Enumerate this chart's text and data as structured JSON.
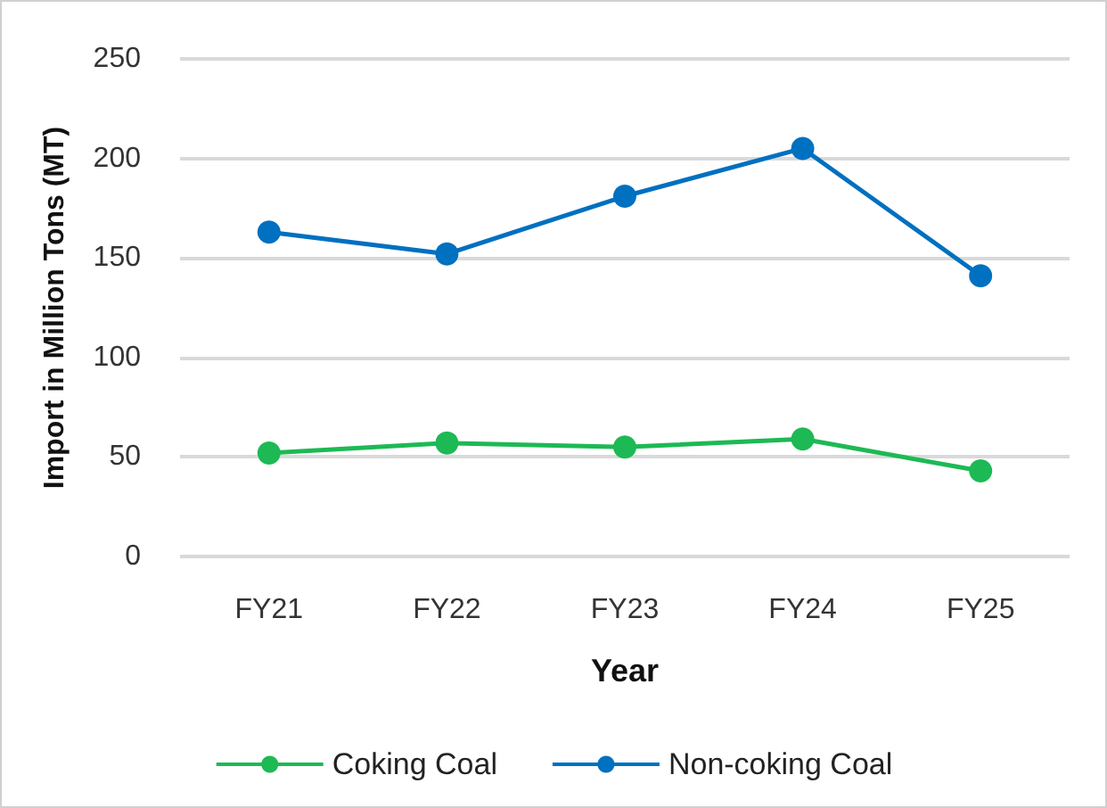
{
  "chart_data": {
    "type": "line",
    "xlabel": "Year",
    "ylabel": "Import in Million Tons (MT)",
    "categories": [
      "FY21",
      "FY22",
      "FY23",
      "FY24",
      "FY25"
    ],
    "series": [
      {
        "name": "Coking Coal",
        "color": "#1db954",
        "values": [
          52,
          57,
          55,
          59,
          43
        ]
      },
      {
        "name": "Non-coking Coal",
        "color": "#0070c0",
        "values": [
          163,
          152,
          181,
          205,
          141
        ]
      }
    ],
    "ylim": [
      0,
      250
    ],
    "yticks": [
      0,
      50,
      100,
      150,
      200,
      250
    ],
    "grid": "y",
    "legend": "bottom",
    "marker": "circle",
    "line_style": "solid"
  }
}
